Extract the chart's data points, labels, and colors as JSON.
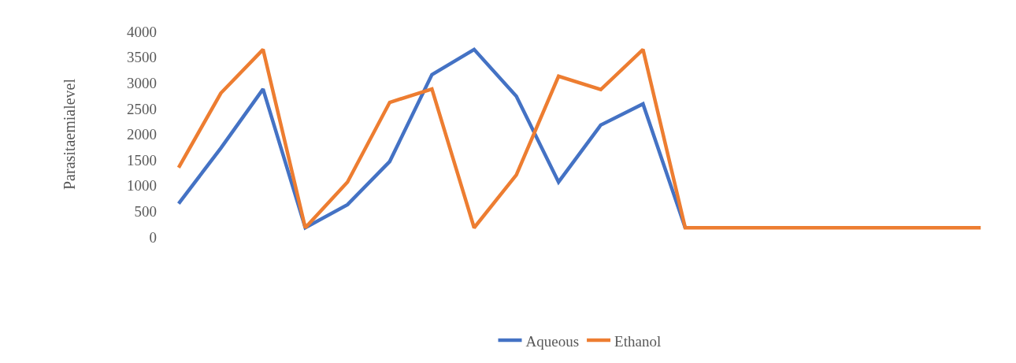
{
  "chart_data": {
    "type": "line",
    "ylabel": "Parasitaemialevel",
    "categories": [
      null,
      null,
      null,
      null,
      null,
      null,
      null,
      null,
      null,
      null,
      null,
      null,
      null,
      null,
      null,
      null,
      null,
      null,
      null,
      null
    ],
    "series": [
      {
        "name": "Aqueous",
        "color": "#4472c4",
        "values": [
          650,
          1730,
          2880,
          180,
          630,
          1470,
          3160,
          3650,
          2740,
          1070,
          2180,
          2590,
          180,
          null,
          null,
          null,
          null,
          null,
          null,
          null
        ]
      },
      {
        "name": "Ethanol",
        "color": "#ed7d31",
        "values": [
          1350,
          2800,
          3650,
          180,
          1070,
          2620,
          2880,
          180,
          1210,
          3130,
          2870,
          3650,
          180,
          180,
          180,
          180,
          180,
          180,
          180,
          180
        ]
      }
    ],
    "ylim": [
      0,
      4000
    ],
    "yticks": [
      0,
      500,
      1000,
      1500,
      2000,
      2500,
      3000,
      3500,
      4000
    ],
    "legend": "bottom",
    "marker": "none",
    "line_style": "solid"
  }
}
